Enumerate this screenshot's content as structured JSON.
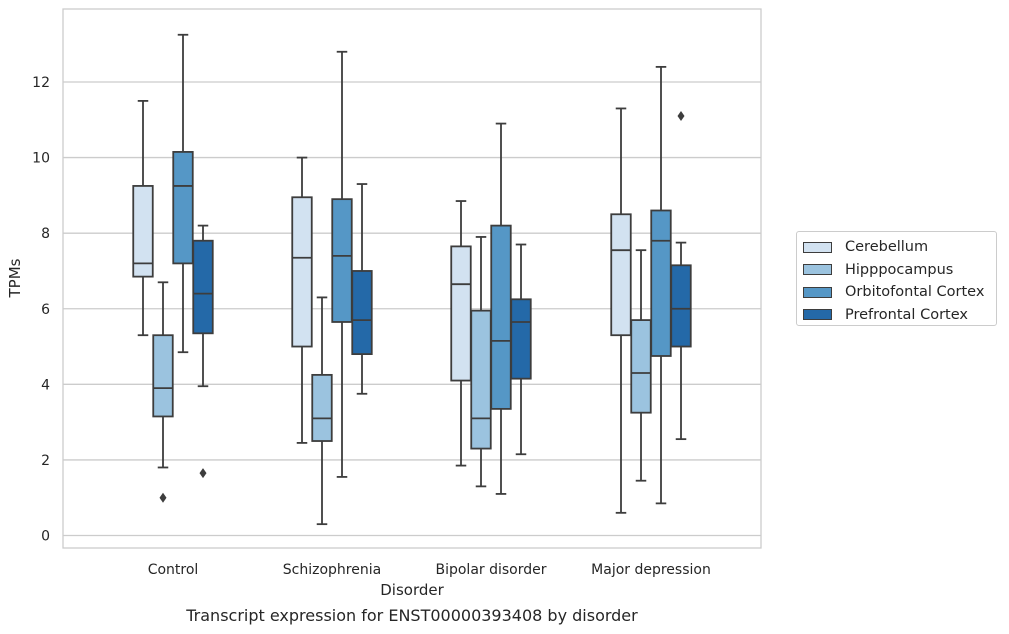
{
  "chart_data": {
    "type": "box",
    "title": "",
    "xlabel": "Disorder",
    "ylabel": "TPMs",
    "caption": "Transcript expression for ENST00000393408 by disorder",
    "categories": [
      "Control",
      "Schizophrenia",
      "Bipolar disorder",
      "Major depression"
    ],
    "ylim": [
      -0.3,
      13.8
    ],
    "yticks": [
      0,
      2,
      4,
      6,
      8,
      10,
      12
    ],
    "grid": "horizontal",
    "legend_position": "right",
    "series": [
      {
        "name": "Cerebellum",
        "color": "#d2e2f1",
        "boxes": [
          {
            "whislo": 5.3,
            "q1": 6.85,
            "med": 7.2,
            "q3": 9.25,
            "whishi": 11.5,
            "fliers": []
          },
          {
            "whislo": 2.45,
            "q1": 5.0,
            "med": 7.35,
            "q3": 8.95,
            "whishi": 10.0,
            "fliers": []
          },
          {
            "whislo": 1.85,
            "q1": 4.1,
            "med": 6.65,
            "q3": 7.65,
            "whishi": 8.85,
            "fliers": []
          },
          {
            "whislo": 0.6,
            "q1": 5.3,
            "med": 7.55,
            "q3": 8.5,
            "whishi": 11.3,
            "fliers": []
          }
        ]
      },
      {
        "name": "Hipppocampus",
        "color": "#9bc3df",
        "boxes": [
          {
            "whislo": 1.8,
            "q1": 3.15,
            "med": 3.9,
            "q3": 5.3,
            "whishi": 6.7,
            "fliers": [
              1.0
            ]
          },
          {
            "whislo": 0.3,
            "q1": 2.5,
            "med": 3.1,
            "q3": 4.25,
            "whishi": 6.3,
            "fliers": []
          },
          {
            "whislo": 1.3,
            "q1": 2.3,
            "med": 3.1,
            "q3": 5.95,
            "whishi": 7.9,
            "fliers": []
          },
          {
            "whislo": 1.45,
            "q1": 3.25,
            "med": 4.3,
            "q3": 5.7,
            "whishi": 7.55,
            "fliers": []
          }
        ]
      },
      {
        "name": "Orbitofontal Cortex",
        "color": "#5597c6",
        "boxes": [
          {
            "whislo": 4.85,
            "q1": 7.2,
            "med": 9.25,
            "q3": 10.15,
            "whishi": 13.25,
            "fliers": []
          },
          {
            "whislo": 1.55,
            "q1": 5.65,
            "med": 7.4,
            "q3": 8.9,
            "whishi": 12.8,
            "fliers": []
          },
          {
            "whislo": 1.1,
            "q1": 3.35,
            "med": 5.15,
            "q3": 8.2,
            "whishi": 10.9,
            "fliers": []
          },
          {
            "whislo": 0.85,
            "q1": 4.75,
            "med": 7.8,
            "q3": 8.6,
            "whishi": 12.4,
            "fliers": []
          }
        ]
      },
      {
        "name": "Prefrontal Cortex",
        "color": "#2469a8",
        "boxes": [
          {
            "whislo": 3.95,
            "q1": 5.35,
            "med": 6.4,
            "q3": 7.8,
            "whishi": 8.2,
            "fliers": [
              1.65
            ]
          },
          {
            "whislo": 3.75,
            "q1": 4.8,
            "med": 5.7,
            "q3": 7.0,
            "whishi": 9.3,
            "fliers": []
          },
          {
            "whislo": 2.15,
            "q1": 4.15,
            "med": 5.65,
            "q3": 6.25,
            "whishi": 7.7,
            "fliers": []
          },
          {
            "whislo": 2.55,
            "q1": 5.0,
            "med": 6.0,
            "q3": 7.15,
            "whishi": 7.75,
            "fliers": [
              11.1
            ]
          }
        ]
      }
    ]
  }
}
